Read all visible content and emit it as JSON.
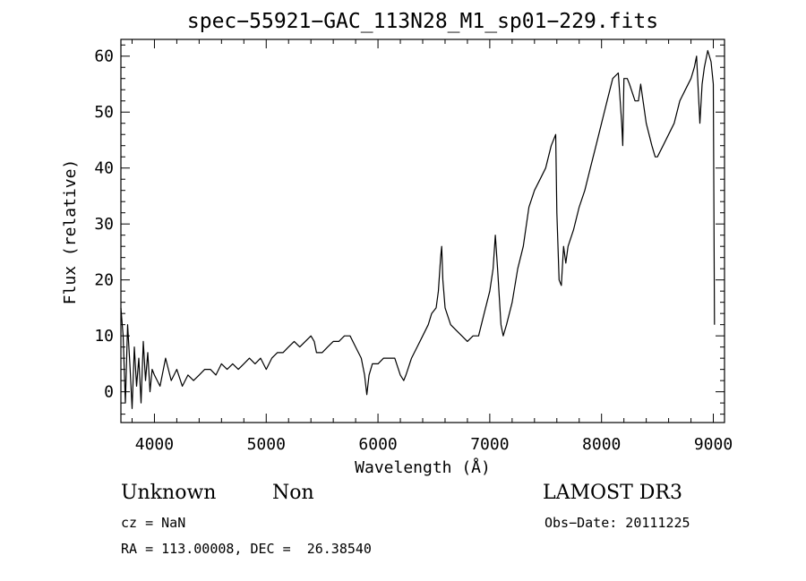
{
  "chart_data": {
    "type": "line",
    "title": "spec−55921−GAC_113N28_M1_sp01−229.fits",
    "xlabel": "Wavelength (Å)",
    "ylabel": "Flux (relative)",
    "xlim": [
      3700,
      9100
    ],
    "ylim": [
      -5.5,
      63
    ],
    "x_ticks": [
      4000,
      5000,
      6000,
      7000,
      8000,
      9000
    ],
    "y_ticks": [
      0,
      10,
      20,
      30,
      40,
      50,
      60
    ],
    "grid": false,
    "series": [
      {
        "x": [
          3700,
          3720,
          3740,
          3760,
          3780,
          3800,
          3820,
          3840,
          3860,
          3880,
          3900,
          3920,
          3940,
          3960,
          3980,
          4000,
          4050,
          4100,
          4150,
          4200,
          4250,
          4300,
          4350,
          4400,
          4450,
          4500,
          4550,
          4600,
          4650,
          4700,
          4750,
          4800,
          4850,
          4900,
          4950,
          5000,
          5050,
          5100,
          5150,
          5200,
          5250,
          5300,
          5350,
          5400,
          5430,
          5450,
          5500,
          5550,
          5600,
          5650,
          5700,
          5750,
          5800,
          5850,
          5880,
          5900,
          5920,
          5950,
          6000,
          6050,
          6100,
          6150,
          6200,
          6230,
          6250,
          6300,
          6350,
          6400,
          6450,
          6480,
          6520,
          6540,
          6560,
          6570,
          6580,
          6600,
          6650,
          6700,
          6750,
          6800,
          6850,
          6900,
          6950,
          7000,
          7030,
          7050,
          7070,
          7100,
          7120,
          7150,
          7200,
          7250,
          7300,
          7350,
          7400,
          7450,
          7500,
          7550,
          7570,
          7590,
          7600,
          7620,
          7640,
          7660,
          7680,
          7700,
          7750,
          7800,
          7850,
          7900,
          7950,
          8000,
          8050,
          8100,
          8150,
          8180,
          8190,
          8200,
          8230,
          8250,
          8300,
          8330,
          8350,
          8400,
          8450,
          8480,
          8500,
          8550,
          8600,
          8650,
          8700,
          8750,
          8800,
          8830,
          8850,
          8880,
          8900,
          8920,
          8950,
          8980,
          9000,
          9010
        ],
        "y": [
          15,
          10,
          -2,
          12,
          5,
          -3,
          8,
          1,
          6,
          -2,
          9,
          2,
          7,
          0,
          4,
          3,
          1,
          6,
          2,
          4,
          1,
          3,
          2,
          3,
          4,
          4,
          3,
          5,
          4,
          5,
          4,
          5,
          6,
          5,
          6,
          4,
          6,
          7,
          7,
          8,
          9,
          8,
          9,
          10,
          9,
          7,
          7,
          8,
          9,
          9,
          10,
          10,
          8,
          6,
          3,
          -0.5,
          3,
          5,
          5,
          6,
          6,
          6,
          3,
          2,
          3,
          6,
          8,
          10,
          12,
          14,
          15,
          18,
          24,
          26,
          20,
          15,
          12,
          11,
          10,
          9,
          10,
          10,
          14,
          18,
          22,
          28,
          22,
          12,
          10,
          12,
          16,
          22,
          26,
          33,
          36,
          38,
          40,
          44,
          45,
          46,
          32,
          20,
          19,
          26,
          23,
          26,
          29,
          33,
          36,
          40,
          44,
          48,
          52,
          56,
          57,
          48,
          44,
          56,
          56,
          55,
          52,
          52,
          55,
          48,
          44,
          42,
          42,
          44,
          46,
          48,
          52,
          54,
          56,
          58,
          60,
          48,
          55,
          58,
          61,
          59,
          55,
          12
        ]
      }
    ]
  },
  "footer": {
    "object_class": "Unknown",
    "subclass": "Non",
    "survey": "LAMOST DR3",
    "cz": "cz = NaN",
    "obs_date": "Obs−Date: 20111225",
    "coords": "RA = 113.00008, DEC =  26.38540"
  }
}
